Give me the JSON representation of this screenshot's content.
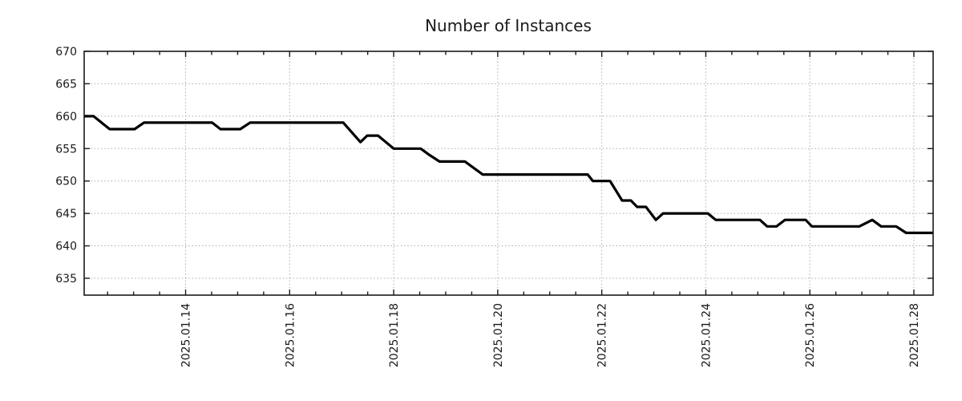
{
  "chart_data": {
    "type": "line",
    "title": "Number of Instances",
    "xlabel": "",
    "ylabel": "",
    "legend": "none",
    "grid": "dotted gridlines at major ticks, mirrored inward ticks on all four sides",
    "colors": {
      "line": "#000000",
      "grid": "#ababab",
      "axis": "#1a1a1a",
      "text": "#1a1a1a",
      "background": "#ffffff"
    },
    "x_axis": {
      "unit": "day of January 2025 (decimal = fraction of day)",
      "range": [
        12.05,
        28.37
      ],
      "tick_positions": [
        14,
        16,
        18,
        20,
        22,
        24,
        26,
        28
      ],
      "tick_labels": [
        "2025.01.14",
        "2025.01.16",
        "2025.01.18",
        "2025.01.20",
        "2025.01.22",
        "2025.01.24",
        "2025.01.26",
        "2025.01.28"
      ],
      "minor_tick_positions": [
        12.5,
        13,
        13.5,
        14.5,
        15,
        15.5,
        16.5,
        17,
        17.5,
        18.5,
        19,
        19.5,
        20.5,
        21,
        21.5,
        22.5,
        23,
        23.5,
        24.5,
        25,
        25.5,
        26.5,
        27,
        27.5
      ],
      "label_rotation_deg": 90
    },
    "y_axis": {
      "range": [
        632.4,
        670
      ],
      "tick_positions": [
        635,
        640,
        645,
        650,
        655,
        660,
        665,
        670
      ],
      "tick_labels": [
        "635",
        "640",
        "645",
        "650",
        "655",
        "660",
        "665",
        "670"
      ]
    },
    "series": [
      {
        "name": "Number of Instances",
        "color": "#000000",
        "points": [
          [
            12.05,
            660
          ],
          [
            12.23,
            660
          ],
          [
            12.54,
            658
          ],
          [
            13.02,
            658
          ],
          [
            13.2,
            659
          ],
          [
            14.51,
            659
          ],
          [
            14.67,
            658
          ],
          [
            15.05,
            658
          ],
          [
            15.24,
            659
          ],
          [
            17.03,
            659
          ],
          [
            17.36,
            656
          ],
          [
            17.49,
            657
          ],
          [
            17.7,
            657
          ],
          [
            18.0,
            655
          ],
          [
            18.52,
            655
          ],
          [
            18.69,
            654
          ],
          [
            18.88,
            653
          ],
          [
            19.37,
            653
          ],
          [
            19.71,
            651
          ],
          [
            21.73,
            651
          ],
          [
            21.83,
            650
          ],
          [
            22.16,
            650
          ],
          [
            22.39,
            647
          ],
          [
            22.56,
            647
          ],
          [
            22.68,
            646
          ],
          [
            22.85,
            646
          ],
          [
            23.04,
            644
          ],
          [
            23.18,
            645
          ],
          [
            24.04,
            645
          ],
          [
            24.19,
            644
          ],
          [
            25.04,
            644
          ],
          [
            25.18,
            643
          ],
          [
            25.36,
            643
          ],
          [
            25.52,
            644
          ],
          [
            25.92,
            644
          ],
          [
            26.04,
            643
          ],
          [
            26.95,
            643
          ],
          [
            27.2,
            644
          ],
          [
            27.37,
            643
          ],
          [
            27.66,
            643
          ],
          [
            27.85,
            642
          ],
          [
            28.37,
            642
          ]
        ]
      }
    ]
  }
}
